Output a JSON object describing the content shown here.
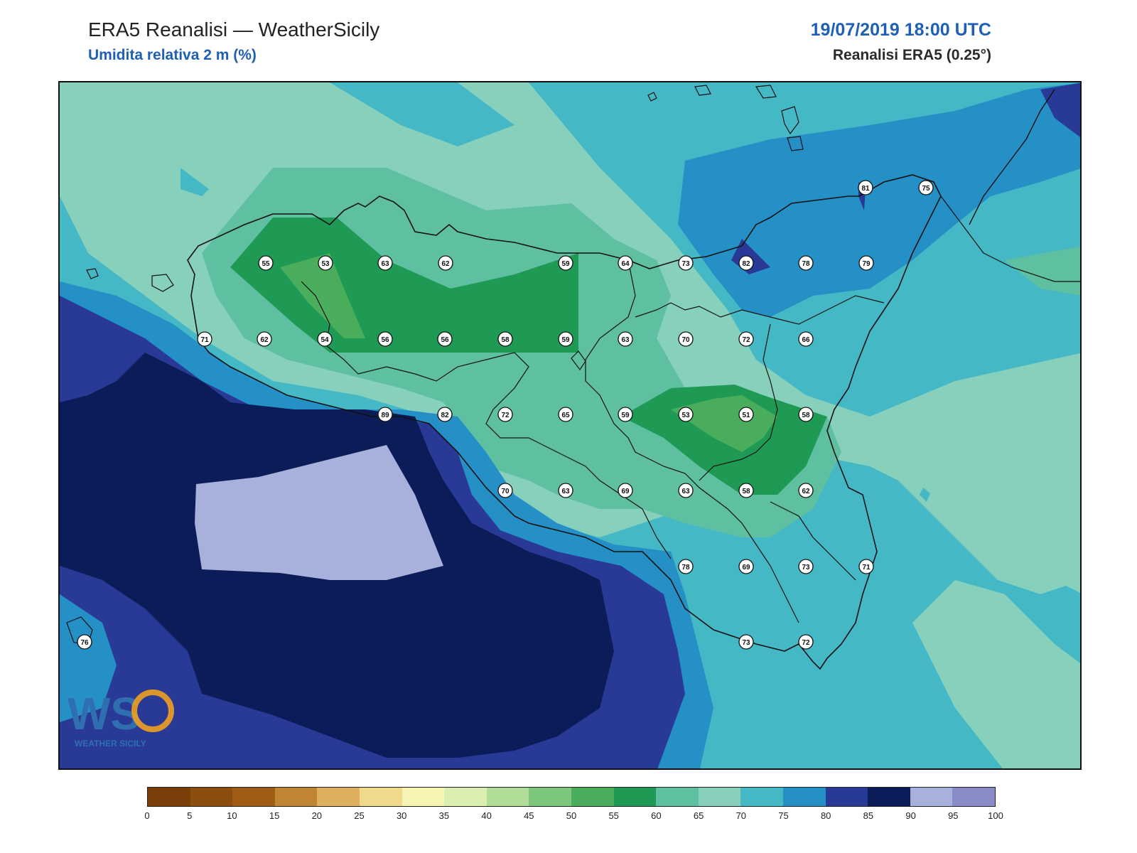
{
  "header": {
    "title": "ERA5 Reanalisi — WeatherSicily",
    "subtitle": "Umidita relativa 2 m (%)",
    "datetime": "19/07/2019 18:00 UTC",
    "dataset": "Reanalisi ERA5 (0.25°)"
  },
  "logo": {
    "text": "WEATHER SICILY",
    "letters": "WS"
  },
  "colorbar": {
    "ticks": [
      "0",
      "5",
      "10",
      "15",
      "20",
      "25",
      "30",
      "35",
      "40",
      "45",
      "50",
      "55",
      "60",
      "65",
      "70",
      "75",
      "80",
      "85",
      "90",
      "95",
      "100"
    ],
    "colors": [
      "#7a3f08",
      "#8c4d0e",
      "#a05c14",
      "#c08532",
      "#ddb060",
      "#f1d98c",
      "#f7f4b4",
      "#dcefb2",
      "#b0de98",
      "#7cc77c",
      "#4aad5c",
      "#1f9a55",
      "#5ec0a0",
      "#86d0bc",
      "#45b8c6",
      "#2490c6",
      "#283a96",
      "#0c1c58",
      "#a8b0dc",
      "#8a8cc8"
    ]
  },
  "stations": [
    {
      "value": "55"
    },
    {
      "value": "53"
    },
    {
      "value": "63"
    },
    {
      "value": "62"
    },
    {
      "value": "59"
    },
    {
      "value": "64"
    },
    {
      "value": "73"
    },
    {
      "value": "82"
    },
    {
      "value": "78"
    },
    {
      "value": "79"
    },
    {
      "value": "81"
    },
    {
      "value": "75"
    },
    {
      "value": "71"
    },
    {
      "value": "62"
    },
    {
      "value": "54"
    },
    {
      "value": "56"
    },
    {
      "value": "56"
    },
    {
      "value": "58"
    },
    {
      "value": "59"
    },
    {
      "value": "63"
    },
    {
      "value": "70"
    },
    {
      "value": "72"
    },
    {
      "value": "66"
    },
    {
      "value": "89"
    },
    {
      "value": "82"
    },
    {
      "value": "72"
    },
    {
      "value": "65"
    },
    {
      "value": "59"
    },
    {
      "value": "53"
    },
    {
      "value": "51"
    },
    {
      "value": "58"
    },
    {
      "value": "70"
    },
    {
      "value": "63"
    },
    {
      "value": "69"
    },
    {
      "value": "63"
    },
    {
      "value": "58"
    },
    {
      "value": "62"
    },
    {
      "value": "78"
    },
    {
      "value": "69"
    },
    {
      "value": "73"
    },
    {
      "value": "71"
    },
    {
      "value": "73"
    },
    {
      "value": "72"
    },
    {
      "value": "76"
    }
  ]
}
